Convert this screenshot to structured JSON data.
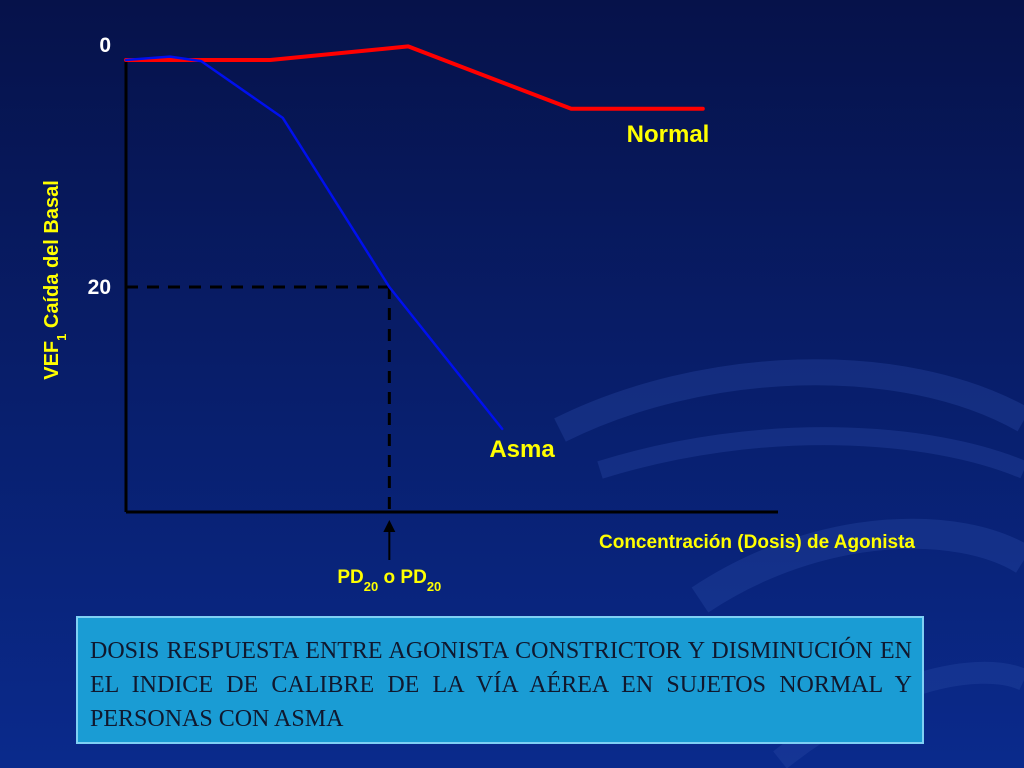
{
  "slide": {
    "caption": "DOSIS RESPUESTA ENTRE AGONISTA CONSTRICTOR Y DISMINUCIÓN EN EL INDICE DE CALIBRE DE LA VÍA AÉREA EN SUJETOS NORMAL Y PERSONAS CON ASMA",
    "colors": {
      "background_top": "#06124a",
      "background_bottom": "#0a2a8c",
      "caption_box": "#1a9cd4",
      "label_text": "#ffff00"
    }
  },
  "chart_data": {
    "type": "line",
    "ylabel": {
      "main": "VEF",
      "sub": "1",
      "rest": " Caída del Basal"
    },
    "xlabel": "Concentración (Dosis) de Agonista",
    "y_tick_labels": [
      "0",
      "20"
    ],
    "y_ticks": [
      0,
      20
    ],
    "ylim": [
      0,
      40
    ],
    "y_inverted": true,
    "xlim": [
      0,
      10
    ],
    "grid": false,
    "threshold": {
      "y": 20,
      "x": 4.2
    },
    "marker": {
      "part1": "PD",
      "sub1": "20",
      "mid": " o PD",
      "sub2": "20"
    },
    "series": [
      {
        "name": "Normal",
        "color": "#ff0000",
        "x": [
          0,
          2.3,
          4.5,
          7.1,
          9.2
        ],
        "y": [
          0,
          0,
          -1.2,
          4.3,
          4.3
        ]
      },
      {
        "name": "Asma",
        "color": "#0010ee",
        "x": [
          0,
          0.7,
          1.2,
          2.5,
          4.2,
          6.0
        ],
        "y": [
          0,
          -0.3,
          0.1,
          5.1,
          20.0,
          32.5
        ]
      }
    ]
  }
}
